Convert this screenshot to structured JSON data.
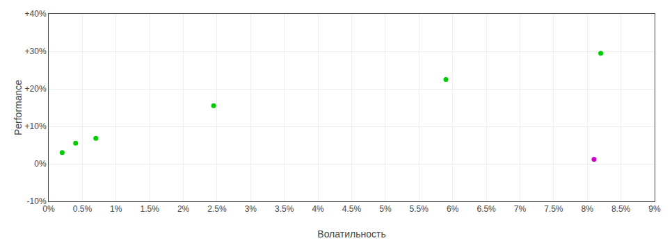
{
  "chart_data": {
    "type": "scatter",
    "xlabel": "Волатильность",
    "ylabel": "Performance",
    "xlim": [
      0,
      0.09
    ],
    "ylim": [
      -0.1,
      0.4
    ],
    "xticks": [
      {
        "value": 0.0,
        "label": "0%"
      },
      {
        "value": 0.005,
        "label": "0.5%"
      },
      {
        "value": 0.01,
        "label": "1%"
      },
      {
        "value": 0.015,
        "label": "1.5%"
      },
      {
        "value": 0.02,
        "label": "2%"
      },
      {
        "value": 0.025,
        "label": "2.5%"
      },
      {
        "value": 0.03,
        "label": "3%"
      },
      {
        "value": 0.035,
        "label": "3.5%"
      },
      {
        "value": 0.04,
        "label": "4%"
      },
      {
        "value": 0.045,
        "label": "4.5%"
      },
      {
        "value": 0.05,
        "label": "5%"
      },
      {
        "value": 0.055,
        "label": "5.5%"
      },
      {
        "value": 0.06,
        "label": "6%"
      },
      {
        "value": 0.065,
        "label": "6.5%"
      },
      {
        "value": 0.07,
        "label": "7%"
      },
      {
        "value": 0.075,
        "label": "7.5%"
      },
      {
        "value": 0.08,
        "label": "8%"
      },
      {
        "value": 0.085,
        "label": "8.5%"
      },
      {
        "value": 0.09,
        "label": "9%"
      }
    ],
    "yticks": [
      {
        "value": -0.1,
        "label": "-10%"
      },
      {
        "value": 0.0,
        "label": "0%"
      },
      {
        "value": 0.1,
        "label": "+10%"
      },
      {
        "value": 0.2,
        "label": "+20%"
      },
      {
        "value": 0.3,
        "label": "+30%"
      },
      {
        "value": 0.4,
        "label": "+40%"
      }
    ],
    "grid": true,
    "series": [
      {
        "color": "#00cc00",
        "x": [
          0.002,
          0.004,
          0.007,
          0.0245,
          0.059,
          0.082
        ],
        "values": [
          0.03,
          0.055,
          0.068,
          0.155,
          0.225,
          0.295
        ]
      },
      {
        "color": "#cc00cc",
        "x": [
          0.081
        ],
        "values": [
          0.012
        ]
      }
    ]
  }
}
